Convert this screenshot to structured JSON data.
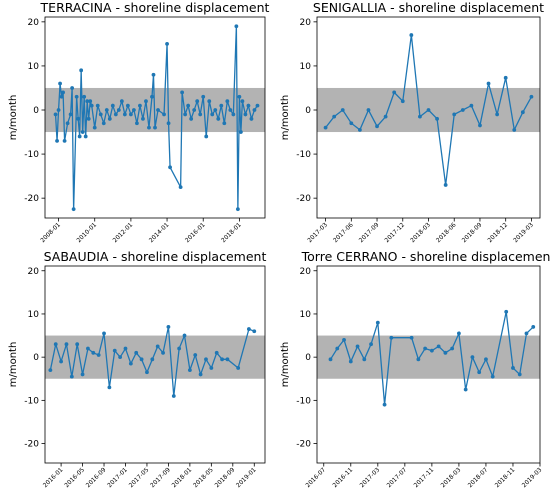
{
  "chart_data": [
    {
      "type": "line",
      "title": "TERRACINA - shoreline displacement",
      "ylabel": "m/month",
      "color": "#1f77b4",
      "band": [
        -5,
        5
      ],
      "band_color": "#b3b3b3",
      "x": [
        "2007-11",
        "2007-12",
        "2008-01",
        "2008-02",
        "2008-03",
        "2008-04",
        "2008-05",
        "2008-07",
        "2008-09",
        "2008-10",
        "2008-11",
        "2009-01",
        "2009-02",
        "2009-03",
        "2009-04",
        "2009-05",
        "2009-06",
        "2009-07",
        "2009-08",
        "2009-09",
        "2009-10",
        "2009-11",
        "2010-01",
        "2010-03",
        "2010-05",
        "2010-07",
        "2010-09",
        "2010-11",
        "2011-01",
        "2011-03",
        "2011-05",
        "2011-07",
        "2011-09",
        "2011-11",
        "2012-01",
        "2012-03",
        "2012-05",
        "2012-07",
        "2012-09",
        "2012-11",
        "2013-01",
        "2013-03",
        "2013-04",
        "2013-05",
        "2013-07",
        "2013-11",
        "2014-01",
        "2014-02",
        "2014-03",
        "2014-10",
        "2014-11",
        "2015-01",
        "2015-03",
        "2015-05",
        "2015-07",
        "2015-09",
        "2015-11",
        "2016-01",
        "2016-03",
        "2016-05",
        "2016-07",
        "2016-09",
        "2016-11",
        "2017-01",
        "2017-03",
        "2017-05",
        "2017-07",
        "2017-09",
        "2017-11",
        "2017-12",
        "2018-01",
        "2018-02",
        "2018-03",
        "2018-05",
        "2018-07",
        "2018-09",
        "2018-11",
        "2019-01"
      ],
      "values": [
        -1,
        -7,
        0,
        6,
        3,
        4,
        -7,
        -3,
        -1,
        5,
        -22.5,
        3,
        -2,
        -6,
        9,
        -5,
        3,
        -6,
        2,
        -2,
        2,
        1,
        -4,
        1,
        -1,
        -3,
        0,
        -2,
        1,
        -1,
        0,
        2,
        -1,
        1,
        -1,
        0,
        -3,
        1,
        -2,
        2,
        -4,
        3,
        8,
        -4,
        0,
        -1,
        15,
        -3,
        -13,
        -17.5,
        4,
        -1,
        1,
        -2,
        0,
        2,
        -1,
        3,
        -6,
        2,
        -1,
        0,
        -2,
        1,
        -3,
        2,
        0,
        -1,
        19,
        -22.5,
        3,
        -5,
        2,
        -1,
        1,
        -2,
        0,
        1
      ],
      "xlim": [
        "2007-04",
        "2019-06"
      ],
      "xticks": [
        "2008-01",
        "2010-01",
        "2012-01",
        "2014-01",
        "2016-01",
        "2018-01"
      ],
      "ylim": [
        -24.5,
        21.1
      ],
      "yticks": [
        -20,
        -10,
        0,
        10,
        20
      ]
    },
    {
      "type": "line",
      "title": "SENIGALLIA - shoreline displacement",
      "ylabel": "m/month",
      "color": "#1f77b4",
      "band": [
        -5,
        5
      ],
      "band_color": "#b3b3b3",
      "x": [
        "2017-03",
        "2017-04",
        "2017-05",
        "2017-06",
        "2017-07",
        "2017-08",
        "2017-09",
        "2017-10",
        "2017-11",
        "2017-12",
        "2018-01",
        "2018-02",
        "2018-03",
        "2018-04",
        "2018-05",
        "2018-06",
        "2018-07",
        "2018-08",
        "2018-09",
        "2018-10",
        "2018-11",
        "2018-12",
        "2019-01",
        "2019-02",
        "2019-03"
      ],
      "values": [
        -4,
        -1.5,
        0,
        -3,
        -4.5,
        0,
        -3.7,
        -1.5,
        4,
        2,
        17,
        -1.5,
        0,
        -2,
        -17,
        -1,
        0,
        1,
        -3.5,
        6,
        -1,
        7.3,
        -4.5,
        -0.5,
        3
      ],
      "xlim": [
        "2017-02",
        "2019-04"
      ],
      "xticks": [
        "2017-03",
        "2017-06",
        "2017-09",
        "2017-12",
        "2018-03",
        "2018-06",
        "2018-09",
        "2018-12",
        "2019-03"
      ],
      "ylim": [
        -24.5,
        21.1
      ],
      "yticks": [
        -20,
        -10,
        0,
        10,
        20
      ]
    },
    {
      "type": "line",
      "title": "SABAUDIA - shoreline displacement",
      "ylabel": "m/month",
      "color": "#1f77b4",
      "band": [
        -5,
        5
      ],
      "band_color": "#b3b3b3",
      "x": [
        "2015-11",
        "2015-12",
        "2016-01",
        "2016-02",
        "2016-03",
        "2016-04",
        "2016-05",
        "2016-06",
        "2016-07",
        "2016-08",
        "2016-09",
        "2016-10",
        "2016-11",
        "2016-12",
        "2017-01",
        "2017-02",
        "2017-03",
        "2017-04",
        "2017-05",
        "2017-06",
        "2017-07",
        "2017-08",
        "2017-09",
        "2017-10",
        "2017-11",
        "2017-12",
        "2018-01",
        "2018-02",
        "2018-03",
        "2018-04",
        "2018-05",
        "2018-06",
        "2018-07",
        "2018-08",
        "2018-10",
        "2018-12",
        "2019-01"
      ],
      "values": [
        -3,
        3,
        -1,
        3,
        -4.5,
        3,
        -4,
        2,
        1,
        0.5,
        5.5,
        -7,
        1.5,
        0,
        2,
        -1.5,
        1,
        -0.5,
        -3.5,
        -0.5,
        2.5,
        1,
        7,
        -9,
        2,
        5,
        -3,
        0.5,
        -4,
        -0.5,
        -2.5,
        1,
        -0.5,
        -0.5,
        -2.5,
        6.5,
        6
      ],
      "xlim": [
        "2015-10",
        "2019-03"
      ],
      "xticks": [
        "2016-01",
        "2016-05",
        "2016-09",
        "2017-01",
        "2017-05",
        "2017-09",
        "2018-01",
        "2018-05",
        "2018-09",
        "2019-01"
      ],
      "ylim": [
        -24.5,
        21.1
      ],
      "yticks": [
        -20,
        -10,
        0,
        10,
        20
      ]
    },
    {
      "type": "line",
      "title": "Torre CERRANO - shoreline displacement",
      "ylabel": "m/month",
      "color": "#1f77b4",
      "band": [
        -5,
        5
      ],
      "band_color": "#b3b3b3",
      "x": [
        "2016-08",
        "2016-09",
        "2016-10",
        "2016-11",
        "2016-12",
        "2017-01",
        "2017-02",
        "2017-03",
        "2017-04",
        "2017-05",
        "2017-08",
        "2017-09",
        "2017-10",
        "2017-11",
        "2017-12",
        "2018-01",
        "2018-02",
        "2018-03",
        "2018-04",
        "2018-05",
        "2018-06",
        "2018-07",
        "2018-08",
        "2018-10",
        "2018-11",
        "2018-12",
        "2019-01",
        "2019-02"
      ],
      "values": [
        -0.5,
        2,
        4,
        -1,
        2.5,
        -0.5,
        3,
        8,
        -11,
        4.5,
        4.5,
        -0.5,
        2,
        1.5,
        2.5,
        1,
        2,
        5.5,
        -7.5,
        0,
        -3.5,
        -0.5,
        -4.5,
        10.5,
        -2.5,
        -4,
        5.5,
        7
      ],
      "xlim": [
        "2016-06",
        "2019-03"
      ],
      "xticks": [
        "2016-07",
        "2016-11",
        "2017-03",
        "2017-07",
        "2017-11",
        "2018-03",
        "2018-07",
        "2018-11",
        "2019-03"
      ],
      "ylim": [
        -24.5,
        21.1
      ],
      "yticks": [
        -20,
        -10,
        0,
        10,
        20
      ]
    }
  ]
}
